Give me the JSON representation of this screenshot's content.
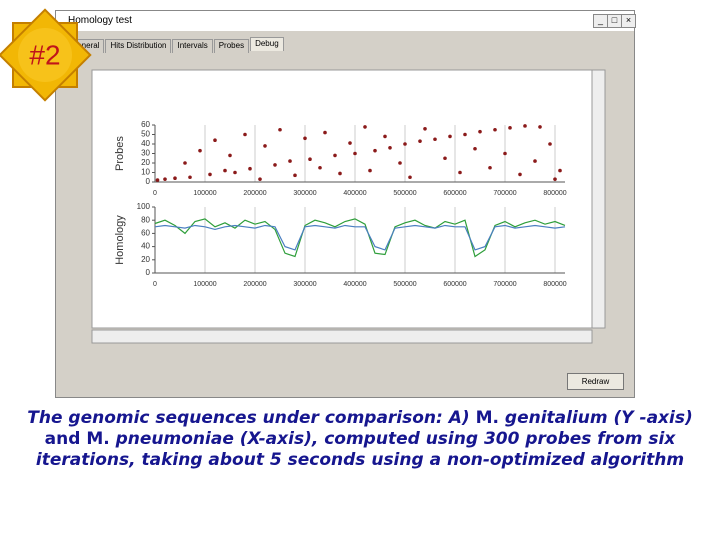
{
  "badge": "#2",
  "window": {
    "title": "Homology test",
    "tabs": [
      "General",
      "Hits Distribution",
      "Intervals",
      "Probes",
      "Debug"
    ],
    "button": "Redraw"
  },
  "caption": [
    {
      "text": "The genomic sequences under comparison: A) ",
      "italic": true
    },
    {
      "text": "M. ",
      "italic": false
    },
    {
      "text": "genitalium (Y -axis)",
      "italic": true
    },
    {
      "text": " and M. ",
      "italic": false
    },
    {
      "text": "pneumoniae (X-axis), computed using 300 probes from six iterations, taking about 5 seconds using a non-optimized algorithm",
      "italic": true
    }
  ],
  "chart_data": [
    {
      "type": "scatter",
      "y_label": "Probes",
      "color": "#8b1a1a",
      "x": [
        5000,
        20000,
        40000,
        60000,
        70000,
        90000,
        110000,
        120000,
        140000,
        150000,
        160000,
        180000,
        190000,
        210000,
        220000,
        240000,
        250000,
        270000,
        280000,
        300000,
        310000,
        330000,
        340000,
        360000,
        370000,
        390000,
        400000,
        420000,
        430000,
        440000,
        460000,
        470000,
        490000,
        500000,
        510000,
        530000,
        540000,
        560000,
        580000,
        590000,
        610000,
        620000,
        640000,
        650000,
        670000,
        680000,
        700000,
        710000,
        730000,
        740000,
        760000,
        770000,
        790000,
        800000,
        810000
      ],
      "values": [
        2,
        3,
        4,
        20,
        5,
        33,
        8,
        44,
        12,
        28,
        10,
        50,
        14,
        3,
        38,
        18,
        55,
        22,
        7,
        46,
        24,
        15,
        52,
        28,
        9,
        41,
        30,
        58,
        12,
        33,
        48,
        36,
        20,
        40,
        5,
        43,
        56,
        45,
        25,
        48,
        10,
        50,
        35,
        53,
        15,
        55,
        30,
        57,
        8,
        59,
        22,
        58,
        40,
        3,
        12
      ],
      "xlim": [
        0,
        820000
      ],
      "ylim": [
        0,
        60
      ],
      "xticks": [
        0,
        100000,
        200000,
        300000,
        400000,
        500000,
        600000,
        700000,
        800000
      ],
      "yticks": [
        0,
        10,
        20,
        30,
        40,
        50,
        60
      ]
    },
    {
      "type": "line",
      "y_label": "Homology",
      "x": [
        0,
        20000,
        40000,
        60000,
        80000,
        100000,
        120000,
        140000,
        160000,
        180000,
        200000,
        220000,
        240000,
        260000,
        280000,
        300000,
        320000,
        340000,
        360000,
        380000,
        400000,
        420000,
        440000,
        460000,
        480000,
        500000,
        520000,
        540000,
        560000,
        580000,
        600000,
        620000,
        640000,
        660000,
        680000,
        700000,
        720000,
        740000,
        760000,
        780000,
        800000,
        820000
      ],
      "series": [
        {
          "color": "#2e9e3a",
          "values": [
            75,
            80,
            72,
            60,
            78,
            82,
            70,
            76,
            68,
            80,
            74,
            78,
            66,
            30,
            25,
            72,
            80,
            76,
            70,
            78,
            82,
            74,
            30,
            28,
            70,
            76,
            80,
            72,
            68,
            78,
            74,
            80,
            25,
            35,
            72,
            78,
            70,
            76,
            80,
            74,
            78,
            72
          ]
        },
        {
          "color": "#4a7fc1",
          "values": [
            70,
            72,
            70,
            68,
            72,
            70,
            66,
            70,
            72,
            70,
            68,
            72,
            70,
            40,
            35,
            70,
            72,
            70,
            68,
            72,
            70,
            70,
            40,
            35,
            68,
            70,
            72,
            70,
            68,
            72,
            70,
            70,
            35,
            40,
            70,
            72,
            68,
            70,
            72,
            70,
            68,
            70
          ]
        }
      ],
      "xlim": [
        0,
        820000
      ],
      "ylim": [
        0,
        100
      ],
      "xticks": [
        0,
        100000,
        200000,
        300000,
        400000,
        500000,
        600000,
        700000,
        800000
      ],
      "yticks": [
        0,
        20,
        40,
        60,
        80,
        100
      ]
    }
  ]
}
